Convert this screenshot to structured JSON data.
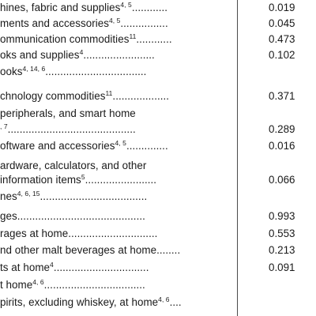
{
  "rows": [
    {
      "label": "hines, fabric and supplies",
      "sup": "4, 5",
      "dots": "............",
      "value": "0.019"
    },
    {
      "label": "ments and accessories",
      "sup": "4, 5",
      "dots": "................",
      "value": "0.045"
    },
    {
      "label": "ommunication commodities",
      "sup": "11",
      "dots": "............",
      "value": "0.473"
    },
    {
      "label": "oks and supplies",
      "sup": "4",
      "dots": "........................",
      "value": "0.102"
    },
    {
      "label": "ooks",
      "sup": "4, 14, 6",
      "dots": "..................................",
      "value": ""
    },
    {
      "label": "chnology commodities",
      "sup": "11",
      "dots": "...................",
      "value": "0.371"
    },
    {
      "label": "peripherals, and smart home",
      "sup": "",
      "dots": "",
      "value": ""
    },
    {
      "label": "",
      "sup": ", 7",
      "dots": "...........................................",
      "value": "0.289"
    },
    {
      "label": "oftware and accessories",
      "sup": "4, 5",
      "dots": "..............",
      "value": "0.016"
    },
    {
      "label": "ardware, calculators, and other",
      "sup": "",
      "dots": "",
      "value": ""
    },
    {
      "label": " information items",
      "sup": "5",
      "dots": "........................",
      "value": "0.066"
    },
    {
      "label": "nes",
      "sup": "4, 6, 15",
      "dots": "....................................",
      "value": ""
    },
    {
      "label": "ges",
      "sup": "",
      "dots": "...........................................",
      "value": "0.993"
    },
    {
      "label": "rages at home",
      "sup": "",
      "dots": "..............................",
      "value": "0.553"
    },
    {
      "label": "nd other malt beverages at home",
      "sup": "",
      "dots": "........",
      "value": "0.213"
    },
    {
      "label": "ts at home",
      "sup": "4",
      "dots": "................................",
      "value": "0.091"
    },
    {
      "label": "t home",
      "sup": "4, 6",
      "dots": "..................................",
      "value": ""
    },
    {
      "label": "pirits, excluding whiskey, at home",
      "sup": "4, 6",
      "dots": "....",
      "value": ""
    }
  ]
}
